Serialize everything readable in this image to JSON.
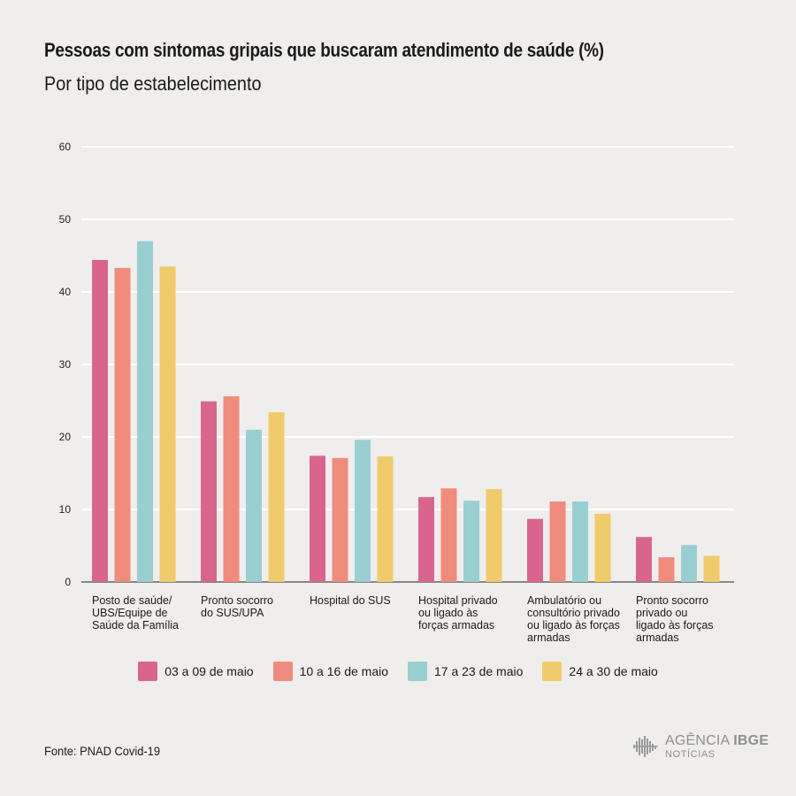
{
  "header": {
    "title": "Pessoas com sintomas gripais que buscaram atendimento de saúde (%)",
    "subtitle": "Por tipo de estabelecimento"
  },
  "footer": {
    "source": "Fonte: PNAD Covid-19",
    "logo_main": "AGÊNCIA",
    "logo_bold": "IBGE",
    "logo_sub": "NOTÍCIAS"
  },
  "chart_data": {
    "type": "bar",
    "title": "Pessoas com sintomas gripais que buscaram atendimento de saúde (%)",
    "subtitle": "Por tipo de estabelecimento",
    "xlabel": "",
    "ylabel": "",
    "ylim": [
      0,
      60
    ],
    "yticks": [
      0,
      10,
      20,
      30,
      40,
      50,
      60
    ],
    "grid": true,
    "legend_position": "bottom",
    "categories": [
      [
        "Posto de saúde/",
        "UBS/Equipe de",
        "Saúde da Família"
      ],
      [
        "Pronto socorro",
        "do SUS/UPA"
      ],
      [
        "Hospital do SUS"
      ],
      [
        "Hospital privado",
        "ou ligado às",
        "forças armadas"
      ],
      [
        "Ambulatório ou",
        "consultório privado",
        "ou ligado às forças",
        "armadas"
      ],
      [
        "Pronto socorro",
        "privado ou",
        "ligado às forças",
        "armadas"
      ]
    ],
    "series": [
      {
        "name": "03 a 09 de maio",
        "color": "#d9658f",
        "values": [
          44.4,
          24.9,
          17.4,
          11.7,
          8.7,
          6.2
        ]
      },
      {
        "name": "10 a 16 de maio",
        "color": "#ef8c7e",
        "values": [
          43.3,
          25.6,
          17.1,
          12.9,
          11.1,
          3.4
        ]
      },
      {
        "name": "17 a 23 de maio",
        "color": "#99cfd1",
        "values": [
          47.0,
          21.0,
          19.6,
          11.2,
          11.1,
          5.1
        ]
      },
      {
        "name": "24 a 30 de maio",
        "color": "#f0cb6c",
        "values": [
          43.5,
          23.4,
          17.3,
          12.8,
          9.4,
          3.6
        ]
      }
    ]
  }
}
